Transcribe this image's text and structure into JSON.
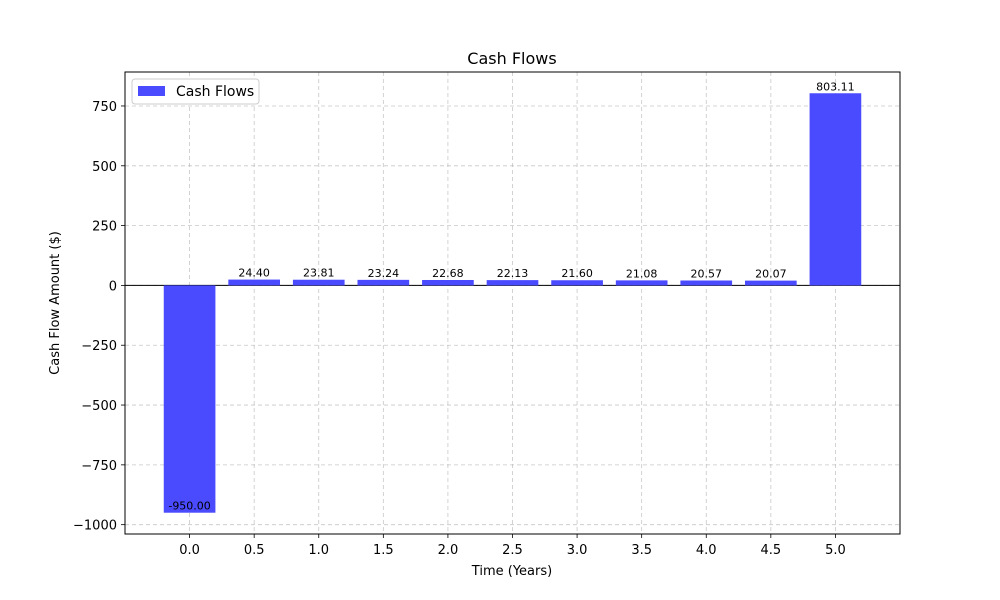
{
  "chart_data": {
    "type": "bar",
    "title": "Cash Flows",
    "xlabel": "Time (Years)",
    "ylabel": "Cash Flow Amount ($)",
    "x": [
      0.0,
      0.5,
      1.0,
      1.5,
      2.0,
      2.5,
      3.0,
      3.5,
      4.0,
      4.5,
      5.0
    ],
    "series": [
      {
        "name": "Cash Flows",
        "values": [
          -950.0,
          24.4,
          23.81,
          23.24,
          22.68,
          22.13,
          21.6,
          21.08,
          20.57,
          20.07,
          803.11
        ],
        "value_labels": [
          "-950.00",
          "24.40",
          "23.81",
          "23.24",
          "22.68",
          "22.13",
          "21.60",
          "21.08",
          "20.57",
          "20.07",
          "803.11"
        ],
        "color": "#4a4aff"
      }
    ],
    "x_tick_labels": [
      "0.0",
      "0.5",
      "1.0",
      "1.5",
      "2.0",
      "2.5",
      "3.0",
      "3.5",
      "4.0",
      "4.5",
      "5.0"
    ],
    "y_ticks": [
      -1000,
      -750,
      -500,
      -250,
      0,
      250,
      500,
      750
    ],
    "y_tick_labels": [
      "−1000",
      "−750",
      "−500",
      "−250",
      "0",
      "250",
      "500",
      "750"
    ],
    "xlim": [
      -0.5,
      5.5
    ],
    "ylim": [
      -1039,
      892
    ],
    "bar_width": 0.4,
    "grid": true,
    "zero_line": true,
    "legend": {
      "position": "top-left",
      "entries": [
        "Cash Flows"
      ]
    }
  }
}
